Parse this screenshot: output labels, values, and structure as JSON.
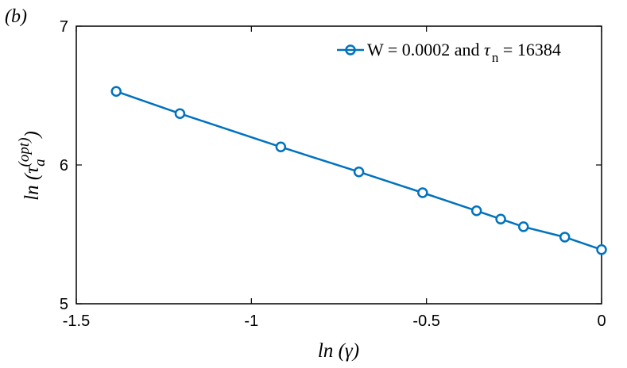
{
  "panel_label": "(b)",
  "chart_data": {
    "type": "line",
    "xlabel": "ln (γ)",
    "ylabel": {
      "prefix": "ln (",
      "symbol": "τ",
      "subscript": "a",
      "superscript": "(opt)",
      "suffix": ")"
    },
    "xlim": [
      -1.5,
      0
    ],
    "ylim": [
      5,
      7
    ],
    "xticks": [
      -1.5,
      -1,
      -0.5,
      0
    ],
    "xtick_labels": [
      "-1.5",
      "-1",
      "-0.5",
      "0"
    ],
    "yticks": [
      5,
      6,
      7
    ],
    "ytick_labels": [
      "5",
      "6",
      "7"
    ],
    "legend_position": "top-right",
    "grid": false,
    "series": [
      {
        "name": "W = 0.0002 and τ_n = 16384",
        "legend": {
          "prefix": "W = 0.0002 and ",
          "symbol": "τ",
          "subscript": "n",
          "suffix": " = 16384"
        },
        "color": "#0072BD",
        "marker": "circle",
        "x": [
          -1.386,
          -1.204,
          -0.916,
          -0.693,
          -0.511,
          -0.357,
          -0.288,
          -0.223,
          -0.105,
          0.0
        ],
        "y": [
          6.53,
          6.37,
          6.13,
          5.95,
          5.8,
          5.67,
          5.61,
          5.555,
          5.48,
          5.39
        ]
      }
    ]
  }
}
